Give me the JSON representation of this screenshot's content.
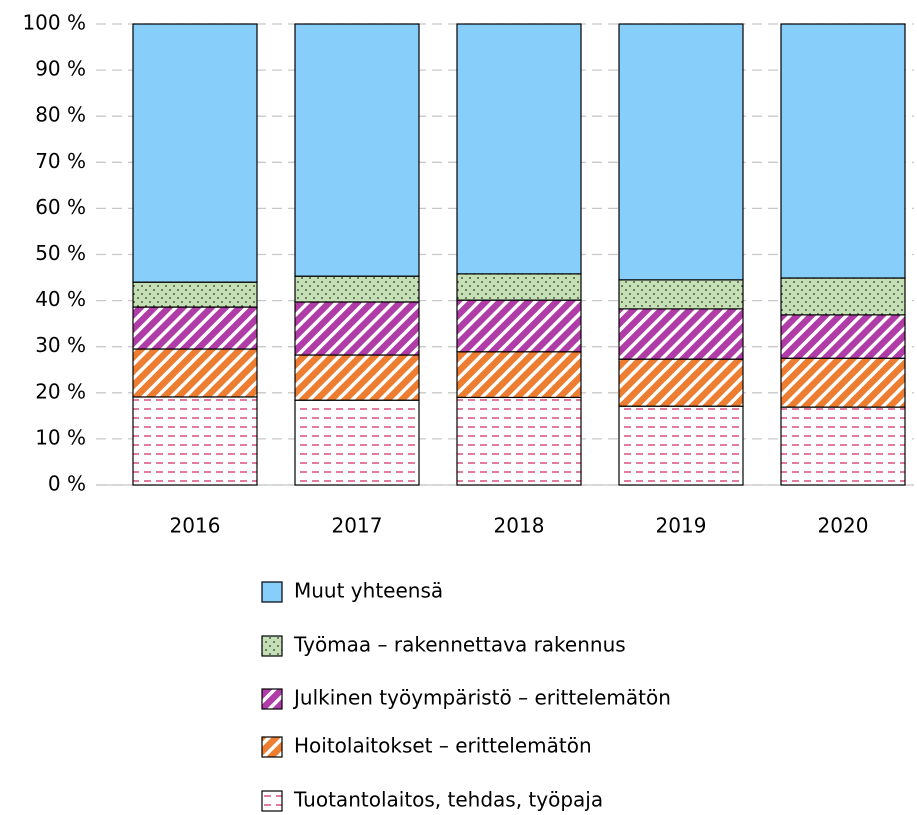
{
  "chart_data": {
    "type": "stacked_bar",
    "categories": [
      "2016",
      "2017",
      "2018",
      "2019",
      "2020"
    ],
    "series": [
      {
        "name": "Tuotantolaitos, tehdas, työpaja",
        "color": "#d6336c",
        "pattern": "dashes",
        "values": [
          19.1,
          18.4,
          19.0,
          17.1,
          16.9
        ]
      },
      {
        "name": "Hoitolaitokset – erittelemätön",
        "color": "#ed7d31",
        "pattern": "stripes",
        "values": [
          10.4,
          9.8,
          9.9,
          10.2,
          10.6
        ]
      },
      {
        "name": "Julkinen työympäristö – erittelemätön",
        "color": "#b03ca8",
        "pattern": "stripes",
        "values": [
          9.1,
          11.5,
          11.2,
          10.9,
          9.4
        ]
      },
      {
        "name": "Työmaa – rakennettava rakennus",
        "color": "#c5e0b4",
        "pattern": "dots",
        "values": [
          5.4,
          5.6,
          5.7,
          6.3,
          8.0
        ]
      },
      {
        "name": "Muut yhteensä",
        "color": "#87cefa",
        "pattern": "solid",
        "values": [
          56.0,
          54.7,
          54.2,
          55.5,
          55.1
        ]
      }
    ],
    "ylim": [
      0,
      100
    ],
    "yticks": [
      {
        "value": 0,
        "label": "0 %"
      },
      {
        "value": 10,
        "label": "10 %"
      },
      {
        "value": 20,
        "label": "20 %"
      },
      {
        "value": 30,
        "label": "30 %"
      },
      {
        "value": 40,
        "label": "40 %"
      },
      {
        "value": 50,
        "label": "50 %"
      },
      {
        "value": 60,
        "label": "60 %"
      },
      {
        "value": 70,
        "label": "70 %"
      },
      {
        "value": 80,
        "label": "80 %"
      },
      {
        "value": 90,
        "label": "90 %"
      },
      {
        "value": 100,
        "label": "100 %"
      }
    ],
    "grid": true,
    "legend": "bottom"
  }
}
